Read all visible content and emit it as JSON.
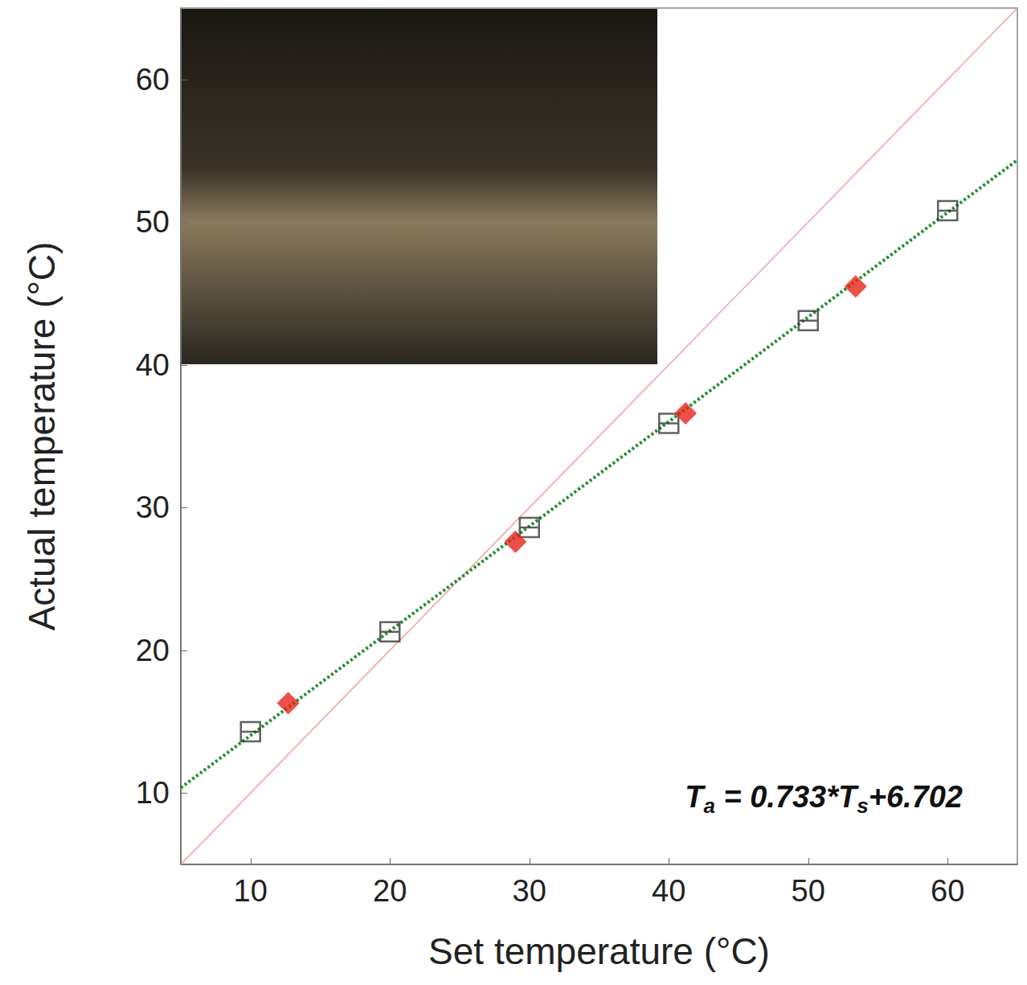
{
  "chart_data": {
    "type": "scatter",
    "x_label": "Set temperature (°C)",
    "y_label": "Actual temperature (°C)",
    "xlim": [
      5,
      65
    ],
    "ylim": [
      5,
      65
    ],
    "xticks": [
      10,
      20,
      30,
      40,
      50,
      60
    ],
    "yticks": [
      10,
      20,
      30,
      40,
      50,
      60
    ],
    "grid": false,
    "annotation": "Ta = 0.733*Ts+6.702",
    "series": [
      {
        "type": "scatter",
        "marker": "square",
        "color": "#3a3a3a",
        "x": [
          10,
          20,
          30,
          40,
          50,
          60
        ],
        "values": [
          14.3,
          21.3,
          28.6,
          35.9,
          43.1,
          50.8
        ]
      },
      {
        "type": "scatter",
        "marker": "diamond",
        "color": "#e8231c",
        "x": [
          12.7,
          29,
          41.2,
          53.4
        ],
        "values": [
          16.3,
          27.6,
          36.6,
          45.5
        ]
      },
      {
        "type": "line",
        "line_style": "dotted",
        "color": "#1f8f2a",
        "x": [
          5,
          65
        ],
        "values": [
          10.367,
          54.347
        ]
      },
      {
        "type": "line",
        "line_style": "solid",
        "color": "#f2a0a0",
        "x": [
          5,
          65
        ],
        "values": [
          5,
          65
        ]
      }
    ]
  }
}
